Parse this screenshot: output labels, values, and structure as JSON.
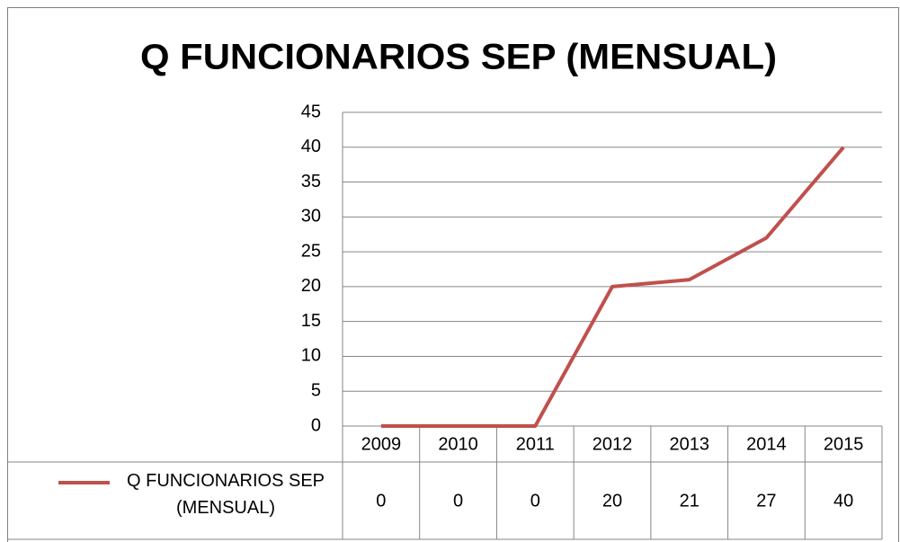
{
  "chart_data": {
    "type": "line",
    "title": "Q FUNCIONARIOS SEP (MENSUAL)",
    "categories": [
      "2009",
      "2010",
      "2011",
      "2012",
      "2013",
      "2014",
      "2015"
    ],
    "series": [
      {
        "name": "Q FUNCIONARIOS SEP (MENSUAL)",
        "color": "#c0504d",
        "values": [
          0,
          0,
          0,
          20,
          21,
          27,
          40
        ]
      }
    ],
    "ylim": [
      0,
      45
    ],
    "yticks": [
      0,
      5,
      10,
      15,
      20,
      25,
      30,
      35,
      40,
      45
    ],
    "grid": true
  }
}
